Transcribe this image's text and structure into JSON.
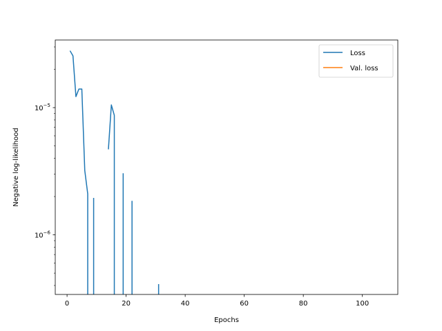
{
  "chart_data": {
    "type": "line",
    "xlabel": "Epochs",
    "ylabel": "Negative log-likelihood",
    "yscale": "log",
    "xlim": [
      -4,
      112
    ],
    "ylim": [
      3.4e-07,
      3.4e-05
    ],
    "x_ticks": [
      {
        "value": 0,
        "label": "0"
      },
      {
        "value": 20,
        "label": "20"
      },
      {
        "value": 40,
        "label": "40"
      },
      {
        "value": 60,
        "label": "60"
      },
      {
        "value": 80,
        "label": "80"
      },
      {
        "value": 100,
        "label": "100"
      }
    ],
    "y_major_ticks": [
      {
        "value": 1e-05,
        "base": "10",
        "exp": "−5"
      },
      {
        "value": 1e-06,
        "base": "10",
        "exp": "−6"
      }
    ],
    "y_minor_ticks": [
      4e-07,
      5e-07,
      6e-07,
      7e-07,
      8e-07,
      9e-07,
      2e-06,
      3e-06,
      4e-06,
      5e-06,
      6e-06,
      7e-06,
      8e-06,
      9e-06,
      2e-05,
      3e-05
    ],
    "grid": false,
    "legend_position": "top-right",
    "series": [
      {
        "name": "Loss",
        "color": "#1f77b4",
        "points": [
          [
            1,
            2.8e-05
          ],
          [
            2,
            2.55e-05
          ],
          [
            3,
            1.22e-05
          ],
          [
            4,
            1.4e-05
          ],
          [
            5,
            1.4e-05
          ],
          [
            6,
            3.2e-06
          ],
          [
            7,
            2.1e-06
          ],
          [
            7,
            null
          ],
          [
            9,
            1.95e-06
          ],
          [
            9,
            null
          ],
          [
            14,
            4.7e-06
          ],
          [
            15,
            1.05e-05
          ],
          [
            16,
            8.7e-06
          ],
          [
            16,
            null
          ],
          [
            19,
            3.05e-06
          ],
          [
            19,
            null
          ],
          [
            22,
            1.85e-06
          ],
          [
            22,
            null
          ],
          [
            31,
            4.1e-07
          ],
          [
            31,
            null
          ]
        ]
      },
      {
        "name": "Val. loss",
        "color": "#ff7f0e",
        "points": []
      }
    ]
  }
}
